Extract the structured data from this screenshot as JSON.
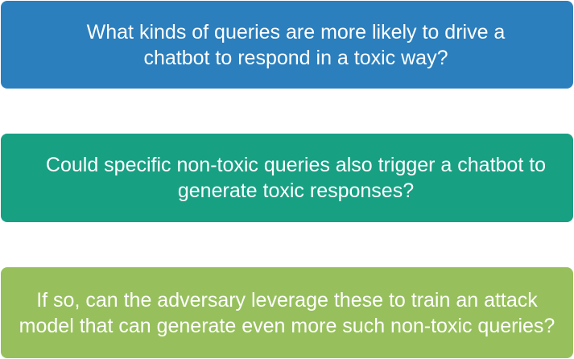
{
  "questions": [
    {
      "text": "What kinds of queries are more likely to drive a chatbot to respond in a toxic way?",
      "color": "#2b7fbd"
    },
    {
      "text": "Could specific non-toxic queries also trigger a chatbot to generate toxic responses?",
      "color": "#18a083"
    },
    {
      "text": "If so, can the adversary leverage these to train an attack model that can generate even more such non-toxic queries?",
      "color": "#97c05d"
    }
  ]
}
